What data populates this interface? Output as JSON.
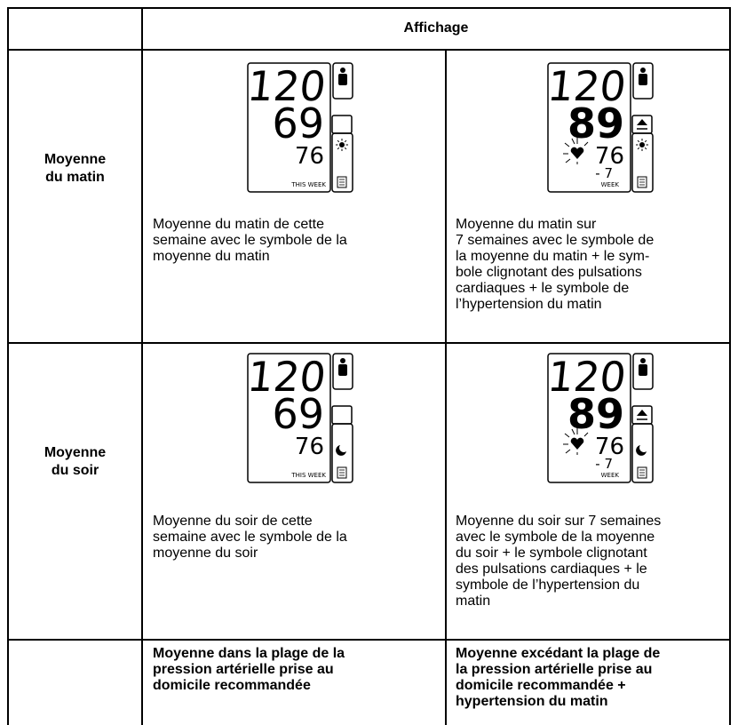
{
  "table": {
    "header": {
      "title": "Affichage"
    },
    "rows": [
      {
        "label": [
          "Moyenne",
          "du matin"
        ],
        "cells": [
          {
            "display": {
              "systolic": "120",
              "diastolic": "69",
              "pulse": "76",
              "period": "THIS WEEK"
            },
            "caption": [
              "Moyenne du matin de cette",
              "semaine avec le symbole de la",
              "moyenne du matin"
            ]
          },
          {
            "display": {
              "systolic": "120",
              "diastolic": "89",
              "pulse": "76",
              "week": "- 7",
              "period": "WEEK"
            },
            "caption": [
              "Moyenne du matin sur",
              "7 semaines avec le symbole de",
              "la moyenne du matin + le sym-",
              "bole clignotant des pulsations",
              "cardiaques + le symbole de",
              "l’hypertension du matin"
            ]
          }
        ]
      },
      {
        "label": [
          "Moyenne",
          "du soir"
        ],
        "cells": [
          {
            "display": {
              "systolic": "120",
              "diastolic": "69",
              "pulse": "76",
              "period": "THIS WEEK"
            },
            "caption": [
              "Moyenne du soir de cette",
              "semaine avec le symbole de la",
              "moyenne du soir"
            ]
          },
          {
            "display": {
              "systolic": "120",
              "diastolic": "89",
              "pulse": "76",
              "week": "- 7",
              "period": "WEEK"
            },
            "caption": [
              "Moyenne du soir sur 7 semaines",
              "avec le symbole de la moyenne",
              "du soir + le symbole clignotant",
              "des pulsations cardiaques + le",
              "symbole de l’hypertension du",
              "matin"
            ]
          }
        ]
      }
    ],
    "footer": [
      [
        "Moyenne dans la plage de la",
        "pression artérielle prise au",
        "domicile recommandée"
      ],
      [
        "Moyenne excédant la plage de",
        "la pression artérielle prise au",
        "domicile recommandée +",
        "hypertension du matin"
      ]
    ]
  }
}
